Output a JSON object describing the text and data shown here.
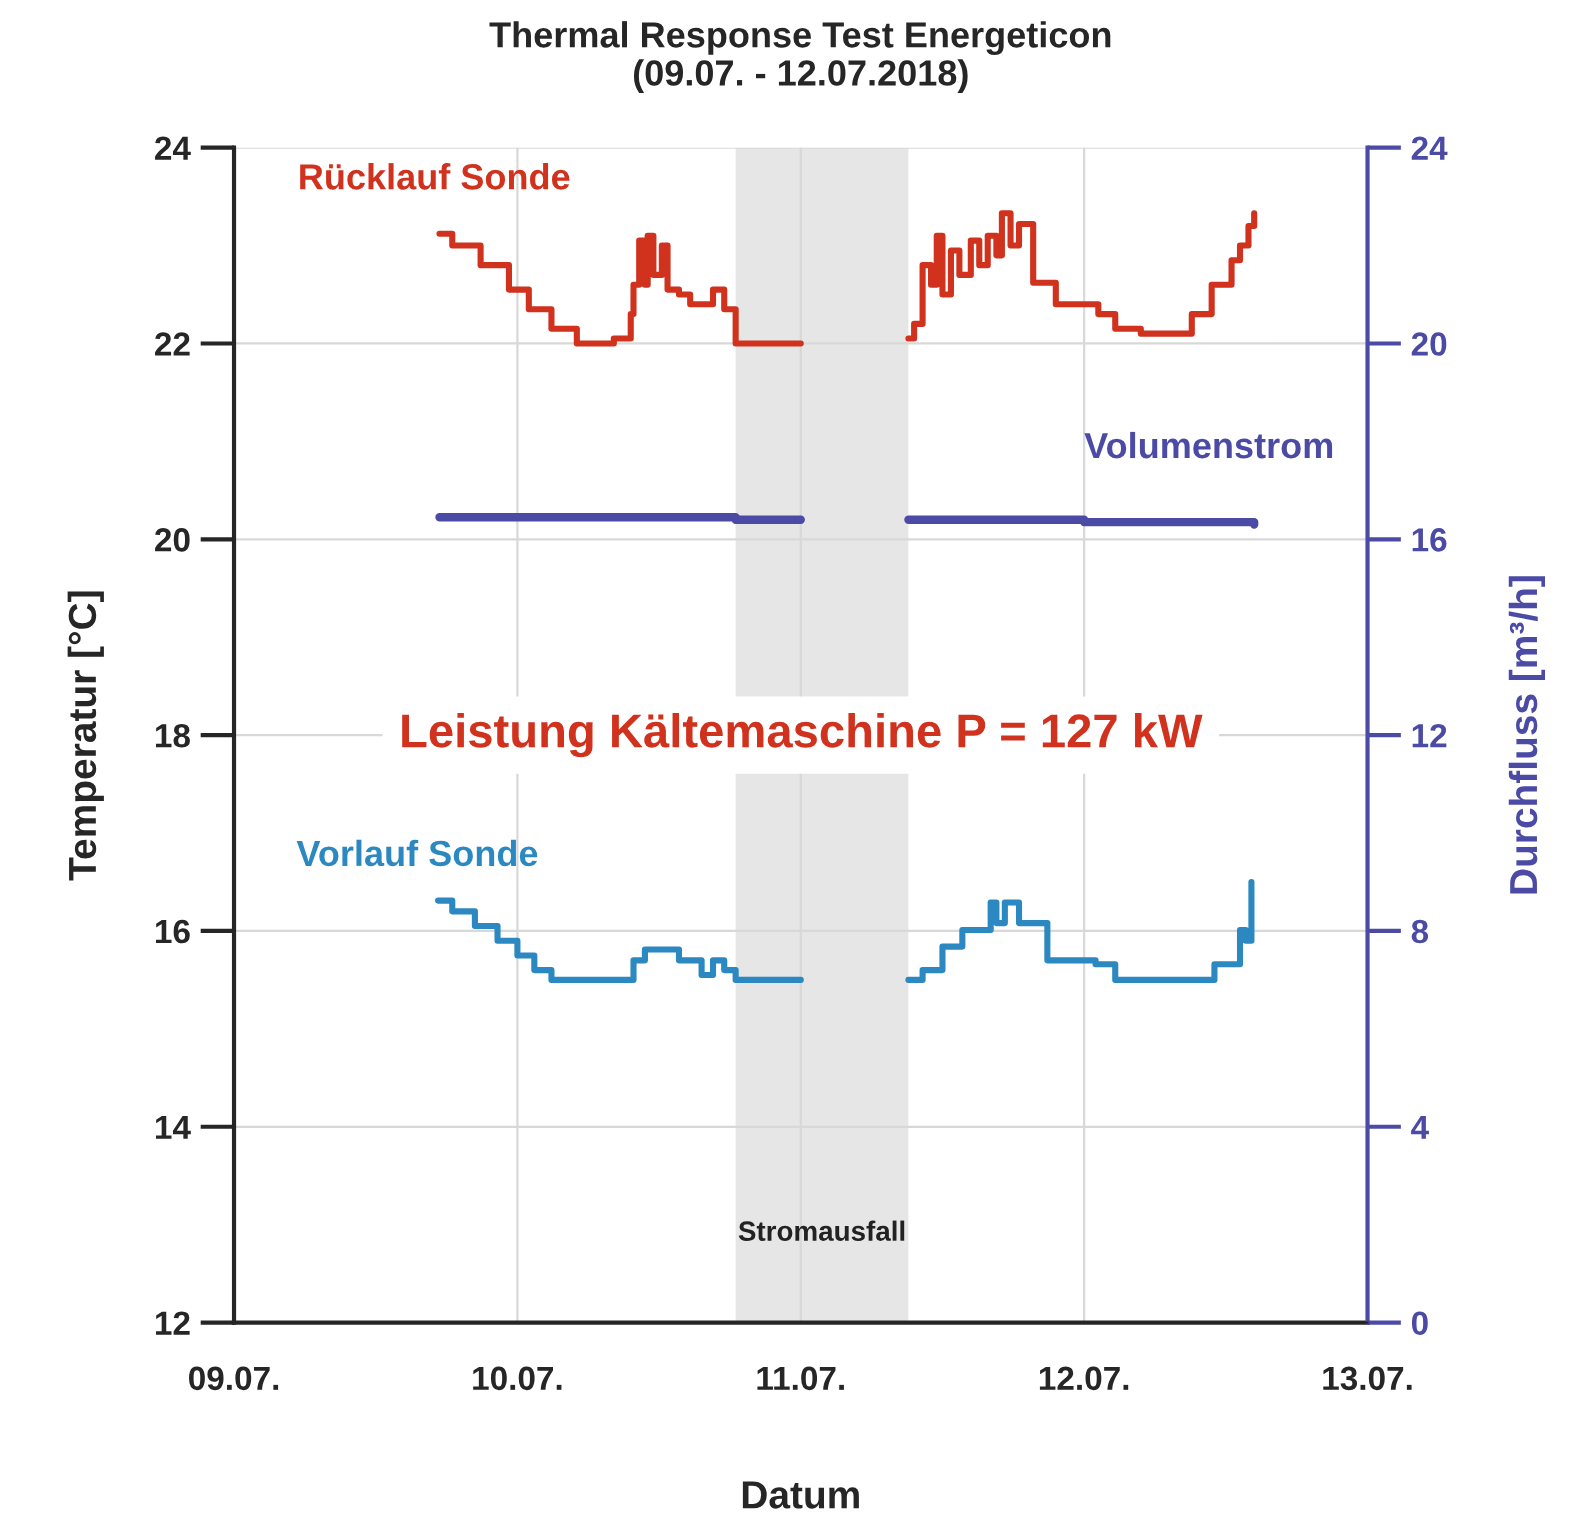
{
  "chart_data": {
    "type": "step",
    "title": "Thermal Response Test Energeticon",
    "subtitle": "(09.07. - 12.07.2018)",
    "xlabel": "Datum",
    "ylabel": "Temperatur [°C]",
    "y2label": "Durchfluss [m³/h]",
    "xlim": [
      "2018-07-09",
      "2018-07-13"
    ],
    "xticks": [
      {
        "value": "2018-07-09",
        "label": "09.07."
      },
      {
        "value": "2018-07-10",
        "label": "10.07."
      },
      {
        "value": "2018-07-11",
        "label": "11.07."
      },
      {
        "value": "2018-07-12",
        "label": "12.07."
      },
      {
        "value": "2018-07-13",
        "label": "13.07."
      }
    ],
    "ylim": [
      12,
      24
    ],
    "yticks": [
      12,
      14,
      16,
      18,
      20,
      22,
      24
    ],
    "y2lim": [
      0,
      24
    ],
    "y2ticks": [
      0,
      4,
      8,
      12,
      16,
      20,
      24
    ],
    "grid": true,
    "legend": false,
    "marker": "none",
    "line_style": "solid",
    "series": [
      {
        "name": "Rücklauf Sonde",
        "color": "#d0321e",
        "x": [
          "2018-07-09T17:24",
          "2018-07-09T18:29",
          "2018-07-09T20:53",
          "2018-07-09T23:17",
          "2018-07-10T00:58",
          "2018-07-10T02:53",
          "2018-07-10T05:02",
          "2018-07-10T08:10",
          "2018-07-10T09:36",
          "2018-07-10T09:50",
          "2018-07-10T10:19",
          "2018-07-10T10:48",
          "2018-07-10T11:02",
          "2018-07-10T11:31",
          "2018-07-10T12:14",
          "2018-07-10T12:43",
          "2018-07-10T13:41",
          "2018-07-10T14:38",
          "2018-07-10T15:36",
          "2018-07-10T16:34",
          "2018-07-10T17:31",
          "2018-07-10T18:29",
          "2018-07-11T00:00",
          "2018-07-11T09:07",
          "2018-07-11T09:36",
          "2018-07-11T10:19",
          "2018-07-11T11:02",
          "2018-07-11T11:31",
          "2018-07-11T12:00",
          "2018-07-11T12:43",
          "2018-07-11T13:26",
          "2018-07-11T14:24",
          "2018-07-11T15:07",
          "2018-07-11T15:50",
          "2018-07-11T16:34",
          "2018-07-11T17:02",
          "2018-07-11T17:46",
          "2018-07-11T18:29",
          "2018-07-11T19:41",
          "2018-07-11T21:36",
          "2018-07-12T01:12",
          "2018-07-12T02:38",
          "2018-07-12T04:48",
          "2018-07-12T07:41",
          "2018-07-12T09:07",
          "2018-07-12T10:48",
          "2018-07-12T12:29",
          "2018-07-12T13:12",
          "2018-07-12T13:55",
          "2018-07-12T14:24"
        ],
        "values": [
          23.12,
          23.0,
          22.8,
          22.55,
          22.35,
          22.15,
          22.0,
          22.05,
          22.3,
          22.6,
          23.05,
          22.6,
          23.1,
          22.7,
          23.0,
          22.55,
          22.5,
          22.4,
          22.4,
          22.55,
          22.35,
          22.0,
          null,
          22.05,
          22.2,
          22.8,
          22.6,
          23.1,
          22.5,
          22.95,
          22.7,
          23.05,
          22.8,
          23.1,
          22.9,
          23.33,
          23.0,
          23.22,
          22.62,
          22.4,
          22.3,
          22.15,
          22.1,
          22.1,
          22.3,
          22.6,
          22.85,
          23.0,
          23.2,
          23.33
        ]
      },
      {
        "name": "Volumenstrom",
        "color": "#4b4ba6",
        "axis": "y2",
        "x": [
          "2018-07-09T17:24",
          "2018-07-10T04:48",
          "2018-07-10T18:29",
          "2018-07-11T00:00",
          "2018-07-11T09:07",
          "2018-07-12T00:00",
          "2018-07-12T14:24"
        ],
        "values": [
          16.45,
          16.45,
          16.4,
          null,
          16.4,
          16.35,
          16.3
        ]
      },
      {
        "name": "Vorlauf Sonde",
        "color": "#2b88c0",
        "x": [
          "2018-07-09T17:17",
          "2018-07-09T18:29",
          "2018-07-09T20:24",
          "2018-07-09T22:19",
          "2018-07-10T00:00",
          "2018-07-10T01:26",
          "2018-07-10T02:53",
          "2018-07-10T08:53",
          "2018-07-10T09:50",
          "2018-07-10T10:48",
          "2018-07-10T13:12",
          "2018-07-10T13:41",
          "2018-07-10T15:36",
          "2018-07-10T16:34",
          "2018-07-10T17:31",
          "2018-07-10T18:29",
          "2018-07-11T00:00",
          "2018-07-11T09:07",
          "2018-07-11T10:19",
          "2018-07-11T12:00",
          "2018-07-11T13:41",
          "2018-07-11T16:05",
          "2018-07-11T16:34",
          "2018-07-11T17:17",
          "2018-07-11T18:29",
          "2018-07-11T20:53",
          "2018-07-12T00:58",
          "2018-07-12T02:38",
          "2018-07-12T09:50",
          "2018-07-12T11:02",
          "2018-07-12T13:12",
          "2018-07-12T13:41",
          "2018-07-12T14:10"
        ],
        "values": [
          16.31,
          16.2,
          16.05,
          15.9,
          15.75,
          15.6,
          15.5,
          15.5,
          15.7,
          15.81,
          15.81,
          15.7,
          15.55,
          15.7,
          15.6,
          15.5,
          null,
          15.5,
          15.6,
          15.84,
          16.01,
          16.29,
          16.08,
          16.29,
          16.08,
          15.7,
          15.66,
          15.5,
          15.5,
          15.66,
          16.01,
          15.9,
          16.5
        ]
      }
    ],
    "bands": [
      {
        "axis": "x",
        "from": "2018-07-10T18:29",
        "to": "2018-07-11T09:07",
        "label": "Stromausfall",
        "color": "#e6e6e6"
      }
    ],
    "annotations": [
      "Leistung Kältemaschine P = 127 kW"
    ]
  }
}
